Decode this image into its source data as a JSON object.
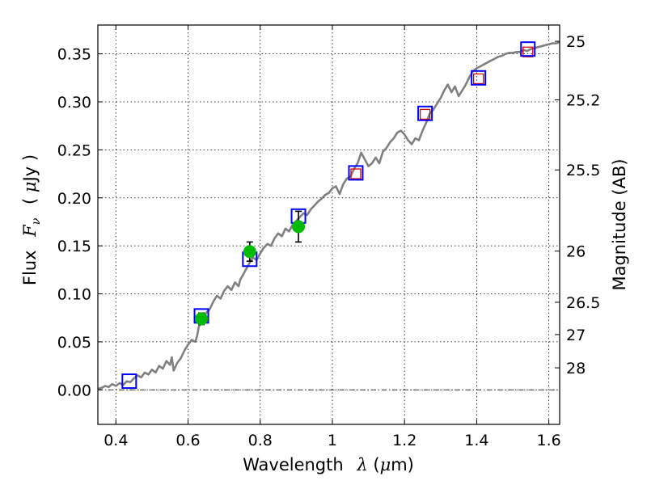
{
  "chart_data": {
    "type": "scatter",
    "title": "",
    "xlabel": {
      "prefix": "Wavelength",
      "symbol": "λ",
      "unit_open": " (",
      "unit_mu": "μ",
      "unit_rest": "m)"
    },
    "ylabel": {
      "prefix": "Flux",
      "symbol": "F",
      "sub": "ν",
      "unit_open": "( ",
      "unit_mu": "μ",
      "unit_rest": "Jy )"
    },
    "ylabel_right": "Magnitude (AB)",
    "xlim": [
      0.35,
      1.63
    ],
    "ylim": [
      -0.036,
      0.38
    ],
    "grid": true,
    "x_ticks": [
      {
        "value": 0.4,
        "label": "0.4"
      },
      {
        "value": 0.6,
        "label": "0.6"
      },
      {
        "value": 0.8,
        "label": "0.8"
      },
      {
        "value": 1.0,
        "label": "1"
      },
      {
        "value": 1.2,
        "label": "1.2"
      },
      {
        "value": 1.4,
        "label": "1.4"
      },
      {
        "value": 1.6,
        "label": "1.6"
      }
    ],
    "y_ticks": [
      {
        "value": 0.0,
        "label": "0.00"
      },
      {
        "value": 0.05,
        "label": "0.05"
      },
      {
        "value": 0.1,
        "label": "0.10"
      },
      {
        "value": 0.15,
        "label": "0.15"
      },
      {
        "value": 0.2,
        "label": "0.20"
      },
      {
        "value": 0.25,
        "label": "0.25"
      },
      {
        "value": 0.3,
        "label": "0.30"
      },
      {
        "value": 0.35,
        "label": "0.35"
      }
    ],
    "mag_ticks": [
      {
        "value": 25,
        "label": "25"
      },
      {
        "value": 25.2,
        "label": "25.2"
      },
      {
        "value": 25.5,
        "label": "25.5"
      },
      {
        "value": 26,
        "label": "26"
      },
      {
        "value": 26.5,
        "label": "26.5"
      },
      {
        "value": 27,
        "label": "27"
      },
      {
        "value": 28,
        "label": "28"
      }
    ],
    "model_spectrum": {
      "color": "#808080",
      "x": [
        0.35,
        0.36,
        0.37,
        0.38,
        0.39,
        0.4,
        0.41,
        0.42,
        0.43,
        0.44,
        0.45,
        0.46,
        0.47,
        0.48,
        0.49,
        0.5,
        0.51,
        0.52,
        0.53,
        0.54,
        0.55,
        0.555,
        0.56,
        0.57,
        0.58,
        0.59,
        0.6,
        0.61,
        0.62,
        0.625,
        0.63,
        0.64,
        0.65,
        0.66,
        0.67,
        0.68,
        0.69,
        0.7,
        0.71,
        0.72,
        0.73,
        0.74,
        0.745,
        0.75,
        0.76,
        0.77,
        0.78,
        0.79,
        0.8,
        0.81,
        0.82,
        0.83,
        0.84,
        0.85,
        0.86,
        0.87,
        0.88,
        0.89,
        0.9,
        0.91,
        0.92,
        0.93,
        0.94,
        0.95,
        0.96,
        0.97,
        0.98,
        0.99,
        1.0,
        1.01,
        1.02,
        1.03,
        1.04,
        1.05,
        1.06,
        1.07,
        1.08,
        1.09,
        1.1,
        1.11,
        1.12,
        1.13,
        1.14,
        1.15,
        1.16,
        1.17,
        1.18,
        1.19,
        1.2,
        1.21,
        1.22,
        1.23,
        1.24,
        1.25,
        1.26,
        1.27,
        1.28,
        1.29,
        1.3,
        1.31,
        1.32,
        1.33,
        1.34,
        1.35,
        1.36,
        1.37,
        1.38,
        1.39,
        1.4,
        1.41,
        1.42,
        1.43,
        1.44,
        1.45,
        1.46,
        1.47,
        1.48,
        1.49,
        1.5,
        1.51,
        1.52,
        1.53,
        1.54,
        1.55,
        1.56,
        1.57,
        1.58,
        1.59,
        1.6,
        1.61,
        1.62,
        1.63
      ],
      "y": [
        0.001,
        0.002,
        0.004,
        0.003,
        0.006,
        0.004,
        0.007,
        0.005,
        0.009,
        0.008,
        0.012,
        0.015,
        0.013,
        0.018,
        0.016,
        0.021,
        0.018,
        0.025,
        0.022,
        0.03,
        0.026,
        0.034,
        0.02,
        0.028,
        0.033,
        0.041,
        0.047,
        0.052,
        0.05,
        0.056,
        0.066,
        0.072,
        0.08,
        0.084,
        0.092,
        0.098,
        0.095,
        0.103,
        0.108,
        0.104,
        0.112,
        0.108,
        0.115,
        0.118,
        0.125,
        0.132,
        0.138,
        0.135,
        0.142,
        0.148,
        0.152,
        0.15,
        0.158,
        0.163,
        0.16,
        0.168,
        0.165,
        0.172,
        0.176,
        0.18,
        0.184,
        0.182,
        0.188,
        0.192,
        0.196,
        0.199,
        0.203,
        0.205,
        0.21,
        0.212,
        0.204,
        0.214,
        0.22,
        0.222,
        0.23,
        0.236,
        0.247,
        0.24,
        0.233,
        0.236,
        0.242,
        0.236,
        0.248,
        0.252,
        0.258,
        0.262,
        0.268,
        0.27,
        0.266,
        0.26,
        0.256,
        0.262,
        0.26,
        0.27,
        0.278,
        0.288,
        0.292,
        0.298,
        0.304,
        0.312,
        0.318,
        0.31,
        0.316,
        0.306,
        0.312,
        0.318,
        0.326,
        0.332,
        0.335,
        0.337,
        0.339,
        0.341,
        0.343,
        0.345,
        0.347,
        0.348,
        0.35,
        0.351,
        0.351,
        0.352,
        0.352,
        0.354,
        0.353,
        0.355,
        0.356,
        0.357,
        0.358,
        0.359,
        0.36,
        0.361,
        0.361,
        0.362
      ]
    },
    "model_photometry": {
      "color": "#0000ff",
      "points": [
        {
          "x": 0.437,
          "y": 0.009
        },
        {
          "x": 0.637,
          "y": 0.077
        },
        {
          "x": 0.771,
          "y": 0.136
        },
        {
          "x": 0.906,
          "y": 0.181
        },
        {
          "x": 1.065,
          "y": 0.226
        },
        {
          "x": 1.257,
          "y": 0.288
        },
        {
          "x": 1.405,
          "y": 0.325
        },
        {
          "x": 1.542,
          "y": 0.355
        }
      ]
    },
    "nir_points": {
      "color": "#e00000",
      "points": [
        {
          "x": 1.065,
          "y": 0.225
        },
        {
          "x": 1.257,
          "y": 0.287
        },
        {
          "x": 1.405,
          "y": 0.324
        },
        {
          "x": 1.542,
          "y": 0.352
        }
      ]
    },
    "observed": {
      "color": "#00bb00",
      "points": [
        {
          "x": 0.637,
          "y": 0.074,
          "err": 0.006
        },
        {
          "x": 0.771,
          "y": 0.144,
          "err": 0.01
        },
        {
          "x": 0.906,
          "y": 0.17,
          "err": 0.016
        }
      ]
    }
  }
}
